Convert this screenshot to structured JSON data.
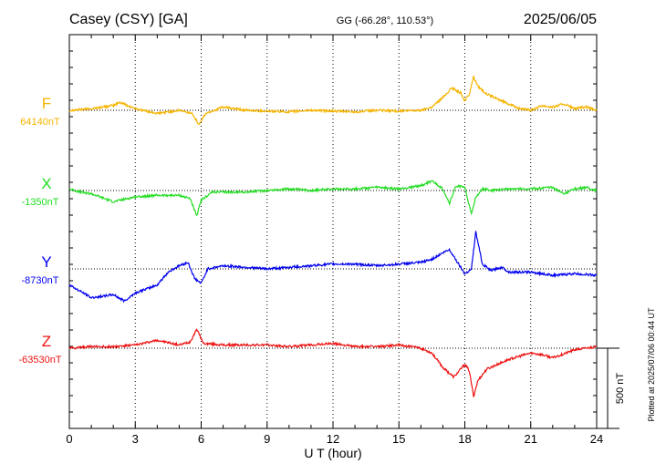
{
  "header": {
    "station": "Casey (CSY)  [GA]",
    "coords": "GG (-66.28°, 110.53°)",
    "date": "2025/06/05"
  },
  "footer": {
    "plotted": "Plotted at 2025/07/06 00:44 UT"
  },
  "chart_data": {
    "type": "line",
    "xlabel": "U T (hour)",
    "xlim": [
      0,
      24
    ],
    "xticks": [
      0,
      3,
      6,
      9,
      12,
      15,
      18,
      21,
      24
    ],
    "xtick_labels": [
      "0",
      "3",
      "6",
      "9",
      "12",
      "15",
      "18",
      "21",
      "24"
    ],
    "scale_bar": {
      "value_nT": 500,
      "label": "500 nT"
    },
    "grid": "dotted vertical every 3 h",
    "series": [
      {
        "name": "F",
        "baseline_label": "64140nT",
        "baseline_nT": 64140,
        "color": "#f5b400",
        "x": [
          0,
          1,
          2,
          2.3,
          3,
          4,
          5,
          5.6,
          5.9,
          6.2,
          7,
          8,
          9,
          10,
          11,
          12,
          13,
          14,
          15,
          16,
          16.5,
          17,
          17.4,
          17.8,
          18,
          18.2,
          18.4,
          18.6,
          19,
          19.5,
          20,
          20.5,
          21,
          21.5,
          22,
          22.5,
          23,
          23.5,
          24
        ],
        "y": [
          0,
          10,
          30,
          50,
          10,
          -20,
          0,
          -20,
          -90,
          -20,
          20,
          0,
          -5,
          -10,
          0,
          -5,
          -10,
          0,
          -5,
          0,
          20,
          80,
          140,
          110,
          60,
          100,
          210,
          150,
          100,
          70,
          40,
          10,
          0,
          30,
          20,
          40,
          10,
          20,
          0
        ]
      },
      {
        "name": "X",
        "baseline_label": "-1350nT",
        "baseline_nT": -1350,
        "color": "#22dd22",
        "x": [
          0,
          0.5,
          1,
          2,
          3,
          4,
          5,
          5.5,
          5.8,
          6,
          6.5,
          7,
          8,
          9,
          10,
          11,
          12,
          13,
          14,
          15,
          16,
          16.5,
          17,
          17.3,
          17.6,
          18,
          18.3,
          18.5,
          18.8,
          19.2,
          20,
          21,
          22,
          22.5,
          23,
          23.5,
          24
        ],
        "y": [
          10,
          -10,
          -20,
          -70,
          -40,
          -30,
          -30,
          -50,
          -160,
          -60,
          -10,
          -10,
          -10,
          0,
          10,
          0,
          10,
          10,
          20,
          10,
          30,
          60,
          10,
          -80,
          30,
          20,
          -150,
          -40,
          10,
          0,
          10,
          10,
          20,
          -20,
          10,
          20,
          0
        ]
      },
      {
        "name": "Y",
        "baseline_label": "-8730nT",
        "baseline_nT": -8730,
        "color": "#0000ee",
        "x": [
          0,
          1,
          2,
          2.5,
          3,
          4,
          4.5,
          5,
          5.4,
          5.7,
          6,
          6.3,
          7,
          8,
          9,
          10,
          11,
          12,
          13,
          14,
          15,
          16,
          16.5,
          17,
          17.3,
          18,
          18.3,
          18.5,
          18.8,
          19.2,
          19.7,
          20,
          21,
          22,
          23,
          24
        ],
        "y": [
          -100,
          -180,
          -160,
          -200,
          -150,
          -100,
          -20,
          20,
          40,
          -60,
          -90,
          0,
          20,
          10,
          0,
          10,
          20,
          30,
          30,
          20,
          30,
          40,
          60,
          100,
          120,
          -30,
          0,
          230,
          30,
          -10,
          10,
          -20,
          -20,
          -40,
          -30,
          -40
        ]
      },
      {
        "name": "Z",
        "baseline_label": "-63530nT",
        "baseline_nT": -63530,
        "color": "#ee1111",
        "x": [
          0,
          1,
          2,
          3,
          4,
          5,
          5.5,
          5.8,
          6.1,
          7,
          8,
          9,
          10,
          11,
          12,
          13,
          14,
          15,
          16,
          16.5,
          17,
          17.5,
          18,
          18.2,
          18.4,
          18.6,
          19,
          20,
          21,
          21.5,
          22,
          23,
          24
        ],
        "y": [
          0,
          10,
          10,
          20,
          50,
          20,
          40,
          120,
          30,
          20,
          20,
          20,
          10,
          20,
          30,
          10,
          10,
          20,
          0,
          -30,
          -120,
          -180,
          -100,
          -140,
          -300,
          -200,
          -130,
          -70,
          -30,
          -40,
          -60,
          -10,
          10
        ]
      }
    ]
  }
}
